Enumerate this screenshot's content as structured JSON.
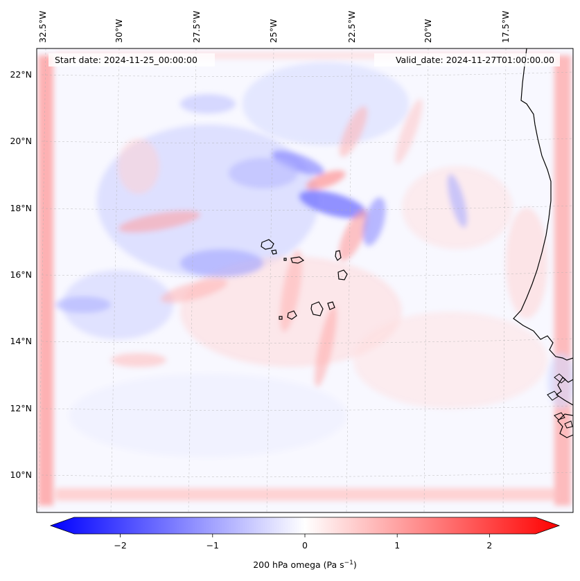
{
  "map": {
    "start_label": "Start date: 2024-11-25_00:00:00",
    "valid_label": "Valid_date: 2024-11-27T01:00:00.00",
    "lon_labels": [
      "32.5°W",
      "30°W",
      "27.5°W",
      "25°W",
      "22.5°W",
      "20°W",
      "17.5°W"
    ],
    "lat_labels": [
      "22°N",
      "20°N",
      "18°N",
      "16°N",
      "14°N",
      "12°N",
      "10°N"
    ],
    "colorbar": {
      "ticks": [
        "−2",
        "−1",
        "0",
        "1",
        "2"
      ],
      "tick_values": [
        -2,
        -1,
        0,
        1,
        2
      ],
      "range": [
        -2.5,
        2.5
      ],
      "label_main": "200 hPa omega (Pa s",
      "label_exp": "−1",
      "label_close": ")",
      "color_low": "#0000ff",
      "color_mid": "#ffffff",
      "color_high": "#ff0000"
    }
  }
}
